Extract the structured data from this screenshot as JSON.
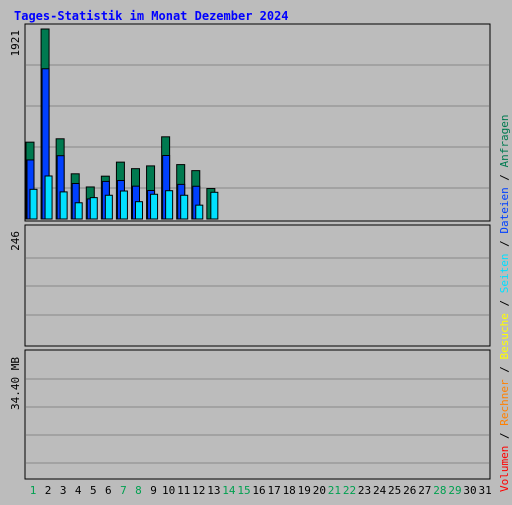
{
  "chart_data": [
    {
      "type": "bar",
      "title": "Tages-Statistik im Monat Dezember 2024",
      "categories": [
        "1",
        "2",
        "3",
        "4",
        "5",
        "6",
        "7",
        "8",
        "9",
        "10",
        "11",
        "12",
        "13",
        "14",
        "15",
        "16",
        "17",
        "18",
        "19",
        "20",
        "21",
        "22",
        "23",
        "24",
        "25",
        "26",
        "27",
        "28",
        "29",
        "30",
        "31"
      ],
      "weekend_days": [
        "1",
        "7",
        "8",
        "14",
        "15",
        "21",
        "22",
        "28",
        "29"
      ],
      "y_max_label": "1921",
      "ylim": [
        0,
        1921
      ],
      "series": [
        {
          "name": "Anfragen",
          "color": "#007a50",
          "values": [
            777,
            1921,
            811,
            457,
            324,
            433,
            575,
            509,
            537,
            831,
            550,
            489,
            308,
            0,
            0,
            0,
            0,
            0,
            0,
            0,
            0,
            0,
            0,
            0,
            0,
            0,
            0,
            0,
            0,
            0,
            0
          ]
        },
        {
          "name": "Dateien",
          "color": "#0040ff",
          "values": [
            597,
            1519,
            640,
            359,
            203,
            380,
            389,
            332,
            288,
            642,
            350,
            331,
            0,
            0,
            0,
            0,
            0,
            0,
            0,
            0,
            0,
            0,
            0,
            0,
            0,
            0,
            0,
            0,
            0,
            0,
            0
          ]
        },
        {
          "name": "Seiten",
          "color": "#00e0ff",
          "values": [
            300,
            435,
            274,
            164,
            216,
            240,
            283,
            175,
            250,
            286,
            240,
            140,
            270,
            0,
            0,
            0,
            0,
            0,
            0,
            0,
            0,
            0,
            0,
            0,
            0,
            0,
            0,
            0,
            0,
            0,
            0
          ]
        }
      ]
    },
    {
      "type": "bar",
      "y_max_label": "246",
      "ylim": [
        0,
        246
      ],
      "series": [
        {
          "name": "Besuche",
          "color": "#ffff00",
          "values": [
            0
          ]
        },
        {
          "name": "Rechner",
          "color": "#ff8000",
          "values": [
            0
          ]
        }
      ]
    },
    {
      "type": "bar",
      "y_max_label": "34.40 MB",
      "ylim": [
        0,
        34.4
      ],
      "series": [
        {
          "name": "Volumen",
          "color": "#ff0000",
          "values": [
            0
          ]
        }
      ]
    }
  ]
}
